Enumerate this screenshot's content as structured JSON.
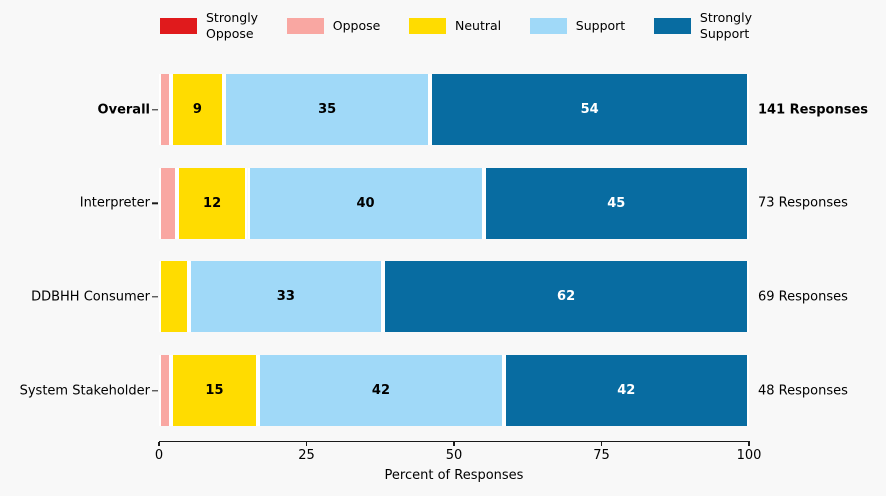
{
  "figure": {
    "background": "#f8f8f8"
  },
  "chart_data": {
    "type": "bar",
    "orientation": "horizontal",
    "stacked": true,
    "title": "",
    "xlabel": "Percent of Responses",
    "xlim": [
      0,
      100
    ],
    "xticks": [
      0,
      25,
      50,
      75,
      100
    ],
    "grid": false,
    "legend_position": "top",
    "categories": [
      "Overall",
      "Interpreter",
      "DDBHH Consumer",
      "System Stakeholder"
    ],
    "category_emphasis": [
      true,
      false,
      false,
      false
    ],
    "responses": [
      "141 Responses",
      "73 Responses",
      "69 Responses",
      "48 Responses"
    ],
    "series": [
      {
        "name": "Strongly Oppose",
        "color": "#e01a1c",
        "label_color": "#000000",
        "values": [
          0,
          0,
          0,
          0
        ],
        "labels": [
          "",
          "",
          "",
          ""
        ]
      },
      {
        "name": "Oppose",
        "color": "#f9a7a2",
        "label_color": "#000000",
        "values": [
          2,
          3,
          0,
          2
        ],
        "labels": [
          "",
          "",
          "",
          ""
        ]
      },
      {
        "name": "Neutral",
        "color": "#ffdc00",
        "label_color": "#000000",
        "values": [
          9,
          12,
          5,
          15
        ],
        "labels": [
          "9",
          "12",
          "",
          "15"
        ]
      },
      {
        "name": "Support",
        "color": "#a0d9f8",
        "label_color": "#000000",
        "values": [
          35,
          40,
          33,
          42
        ],
        "labels": [
          "35",
          "40",
          "33",
          "42"
        ]
      },
      {
        "name": "Strongly Support",
        "color": "#086ca1",
        "label_color": "#ffffff",
        "values": [
          54,
          45,
          62,
          42
        ],
        "labels": [
          "54",
          "45",
          "62",
          "42"
        ]
      }
    ],
    "legend": [
      {
        "label": "Strongly\nOppose",
        "color": "#e01a1c"
      },
      {
        "label": "Oppose",
        "color": "#f9a7a2"
      },
      {
        "label": "Neutral",
        "color": "#ffdc00"
      },
      {
        "label": "Support",
        "color": "#a0d9f8"
      },
      {
        "label": "Strongly\nSupport",
        "color": "#086ca1"
      }
    ]
  }
}
